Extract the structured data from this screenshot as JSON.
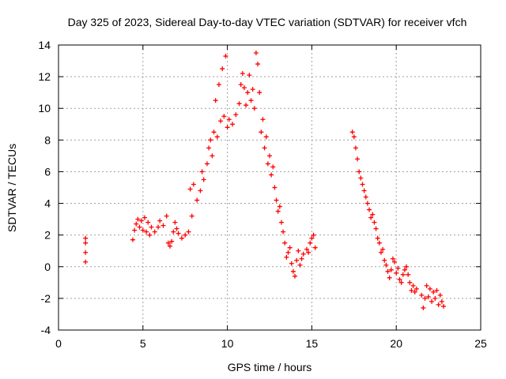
{
  "chart_data": {
    "type": "scatter",
    "title": "Day 325 of 2023, Sidereal Day-to-day VTEC variation (SDTVAR) for receiver vfch",
    "xlabel": "GPS time / hours",
    "ylabel": "SDTVAR / TECUs",
    "xlim": [
      0,
      25
    ],
    "ylim": [
      -4,
      14
    ],
    "xticks": [
      0,
      5,
      10,
      15,
      20,
      25
    ],
    "xtick_labels": [
      "0",
      "5",
      "10",
      "15",
      "20",
      "25"
    ],
    "yticks": [
      -4,
      -2,
      0,
      2,
      4,
      6,
      8,
      10,
      12,
      14
    ],
    "ytick_labels": [
      "-4",
      "-2",
      "0",
      "2",
      "4",
      "6",
      "8",
      "10",
      "12",
      "14"
    ],
    "grid": true,
    "marker": "+",
    "color": "#ff0000",
    "series": [
      {
        "name": "SDTVAR",
        "points": [
          [
            1.6,
            1.8
          ],
          [
            1.6,
            1.5
          ],
          [
            1.6,
            0.9
          ],
          [
            1.6,
            0.3
          ],
          [
            4.4,
            1.7
          ],
          [
            4.5,
            2.3
          ],
          [
            4.6,
            2.7
          ],
          [
            4.7,
            3.0
          ],
          [
            4.8,
            2.5
          ],
          [
            4.9,
            2.9
          ],
          [
            5.0,
            2.3
          ],
          [
            5.1,
            3.1
          ],
          [
            5.2,
            2.2
          ],
          [
            5.3,
            2.8
          ],
          [
            5.4,
            2.0
          ],
          [
            5.5,
            2.5
          ],
          [
            5.7,
            2.2
          ],
          [
            5.9,
            2.5
          ],
          [
            6.0,
            2.9
          ],
          [
            6.2,
            2.6
          ],
          [
            6.4,
            3.2
          ],
          [
            6.5,
            1.5
          ],
          [
            6.6,
            1.3
          ],
          [
            6.7,
            1.6
          ],
          [
            6.8,
            2.2
          ],
          [
            6.9,
            2.8
          ],
          [
            7.0,
            2.4
          ],
          [
            7.1,
            2.1
          ],
          [
            7.3,
            1.8
          ],
          [
            7.5,
            2.0
          ],
          [
            7.7,
            2.2
          ],
          [
            7.8,
            4.9
          ],
          [
            7.9,
            3.2
          ],
          [
            8.0,
            5.2
          ],
          [
            8.2,
            4.2
          ],
          [
            8.4,
            4.8
          ],
          [
            8.5,
            6.0
          ],
          [
            8.6,
            5.5
          ],
          [
            8.8,
            6.5
          ],
          [
            8.9,
            7.5
          ],
          [
            9.0,
            8.0
          ],
          [
            9.1,
            7.0
          ],
          [
            9.2,
            8.5
          ],
          [
            9.3,
            10.5
          ],
          [
            9.4,
            8.2
          ],
          [
            9.5,
            11.5
          ],
          [
            9.6,
            9.2
          ],
          [
            9.7,
            12.5
          ],
          [
            9.8,
            9.5
          ],
          [
            9.9,
            13.3
          ],
          [
            10.0,
            8.8
          ],
          [
            10.1,
            9.3
          ],
          [
            10.3,
            9.0
          ],
          [
            10.5,
            9.6
          ],
          [
            10.7,
            10.3
          ],
          [
            10.8,
            11.5
          ],
          [
            10.9,
            12.2
          ],
          [
            11.0,
            11.3
          ],
          [
            11.1,
            10.2
          ],
          [
            11.2,
            11.0
          ],
          [
            11.3,
            12.1
          ],
          [
            11.4,
            10.5
          ],
          [
            11.5,
            11.2
          ],
          [
            11.6,
            10.0
          ],
          [
            11.7,
            13.5
          ],
          [
            11.8,
            12.8
          ],
          [
            11.9,
            11.0
          ],
          [
            12.0,
            8.5
          ],
          [
            12.1,
            9.3
          ],
          [
            12.2,
            7.5
          ],
          [
            12.3,
            8.2
          ],
          [
            12.4,
            6.5
          ],
          [
            12.5,
            7.0
          ],
          [
            12.6,
            5.8
          ],
          [
            12.7,
            6.3
          ],
          [
            12.8,
            5.0
          ],
          [
            12.9,
            4.2
          ],
          [
            13.0,
            3.5
          ],
          [
            13.1,
            3.8
          ],
          [
            13.2,
            2.8
          ],
          [
            13.3,
            2.2
          ],
          [
            13.4,
            1.5
          ],
          [
            13.5,
            0.6
          ],
          [
            13.6,
            0.9
          ],
          [
            13.7,
            1.2
          ],
          [
            13.8,
            0.2
          ],
          [
            13.9,
            -0.3
          ],
          [
            14.0,
            -0.6
          ],
          [
            14.1,
            0.4
          ],
          [
            14.2,
            1.0
          ],
          [
            14.3,
            0.1
          ],
          [
            14.4,
            0.5
          ],
          [
            14.5,
            0.8
          ],
          [
            14.7,
            1.1
          ],
          [
            14.8,
            0.9
          ],
          [
            14.9,
            1.5
          ],
          [
            15.0,
            1.8
          ],
          [
            15.1,
            2.0
          ],
          [
            15.2,
            1.2
          ],
          [
            17.4,
            8.5
          ],
          [
            17.5,
            8.2
          ],
          [
            17.6,
            7.5
          ],
          [
            17.7,
            6.8
          ],
          [
            17.8,
            6.0
          ],
          [
            17.9,
            5.6
          ],
          [
            18.0,
            5.2
          ],
          [
            18.1,
            4.8
          ],
          [
            18.2,
            4.4
          ],
          [
            18.3,
            4.0
          ],
          [
            18.4,
            3.6
          ],
          [
            18.5,
            3.1
          ],
          [
            18.6,
            3.3
          ],
          [
            18.7,
            2.8
          ],
          [
            18.8,
            2.4
          ],
          [
            18.9,
            1.8
          ],
          [
            19.0,
            1.5
          ],
          [
            19.1,
            0.9
          ],
          [
            19.2,
            1.1
          ],
          [
            19.3,
            0.4
          ],
          [
            19.4,
            0.1
          ],
          [
            19.5,
            -0.3
          ],
          [
            19.6,
            -0.7
          ],
          [
            19.7,
            -0.2
          ],
          [
            19.8,
            0.5
          ],
          [
            19.9,
            0.3
          ],
          [
            20.0,
            -0.4
          ],
          [
            20.1,
            -0.1
          ],
          [
            20.2,
            -0.8
          ],
          [
            20.3,
            -1.0
          ],
          [
            20.4,
            -0.5
          ],
          [
            20.5,
            -0.2
          ],
          [
            20.6,
            0.0
          ],
          [
            20.7,
            -0.5
          ],
          [
            20.8,
            -1.0
          ],
          [
            20.9,
            -1.5
          ],
          [
            21.0,
            -1.2
          ],
          [
            21.1,
            -1.6
          ],
          [
            21.2,
            -1.4
          ],
          [
            21.5,
            -1.8
          ],
          [
            21.6,
            -2.6
          ],
          [
            21.7,
            -2.0
          ],
          [
            21.8,
            -1.2
          ],
          [
            21.9,
            -1.9
          ],
          [
            22.0,
            -1.4
          ],
          [
            22.1,
            -2.2
          ],
          [
            22.2,
            -1.6
          ],
          [
            22.3,
            -2.0
          ],
          [
            22.4,
            -1.5
          ],
          [
            22.5,
            -2.4
          ],
          [
            22.6,
            -1.8
          ],
          [
            22.7,
            -2.2
          ],
          [
            22.8,
            -2.5
          ]
        ]
      }
    ]
  }
}
